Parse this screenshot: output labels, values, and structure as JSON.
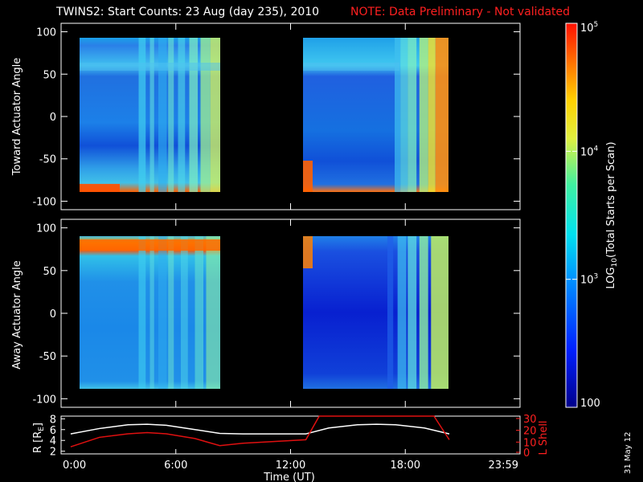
{
  "header": {
    "title": "TWINS2: Start Counts: 23 Aug (day 235), 2010",
    "note": "NOTE: Data Preliminary - Not validated"
  },
  "colors": {
    "background": "#000000",
    "axes": "#ffffff",
    "note": "#ff2020",
    "r_line": "#ffffff",
    "l_shell_line": "#e01010"
  },
  "stamp": "31 May 12",
  "chart_data": [
    {
      "type": "heatmap",
      "ylabel": "Toward Actuator Angle",
      "ylim": [
        -110,
        110
      ],
      "yticks": [
        "100",
        "50",
        "0",
        "-50",
        "-100"
      ],
      "xlim_hours": [
        0,
        24
      ],
      "data_intervals_hours": [
        [
          0.5,
          8.3
        ],
        [
          12.8,
          20.3
        ]
      ],
      "grid": false
    },
    {
      "type": "heatmap",
      "ylabel": "Away Actuator Angle",
      "ylim": [
        -110,
        110
      ],
      "yticks": [
        "100",
        "50",
        "0",
        "-50",
        "-100"
      ],
      "xlim_hours": [
        0,
        24
      ],
      "data_intervals_hours": [
        [
          0.5,
          8.3
        ],
        [
          12.8,
          20.3
        ]
      ],
      "grid": false
    },
    {
      "type": "line",
      "ylabel": "R [R",
      "ylabel_sub": "E",
      "ylabel_end": "]",
      "y2label": "L Shell",
      "yticks": [
        "8",
        "6",
        "4",
        "2"
      ],
      "y2ticks": [
        "30",
        "20",
        "10",
        "0"
      ],
      "ylim": [
        1.5,
        8.5
      ],
      "y2lim": [
        0,
        32
      ],
      "xlabel": "Time (UT)",
      "xticks": [
        "0:00",
        "6:00",
        "12:00",
        "18:00",
        "23:59"
      ],
      "xtick_hours": [
        0,
        6,
        12,
        18,
        24
      ],
      "series": [
        {
          "key": "R",
          "x": [
            0.5,
            2,
            3.5,
            4.5,
            5.5,
            7,
            8.3,
            9.5,
            12.8,
            14,
            15.5,
            16.5,
            17.5,
            19,
            20.3
          ],
          "values": [
            5.2,
            6.2,
            6.9,
            7.0,
            6.8,
            6.0,
            5.3,
            5.2,
            5.2,
            6.3,
            6.9,
            7.0,
            6.9,
            6.3,
            5.2
          ]
        },
        {
          "key": "L",
          "x": [
            0.5,
            2,
            3.5,
            4.5,
            5.5,
            7,
            8.3,
            9.5,
            12.8,
            13.5,
            19.5,
            20.3
          ],
          "values": [
            6,
            14,
            17,
            18,
            17,
            13,
            7,
            9,
            12,
            32,
            32,
            12
          ]
        }
      ]
    }
  ],
  "colorbar": {
    "label_prefix": "LOG",
    "label_sub": "10",
    "label_suffix": "(Total Starts per Scan)",
    "ticks": [
      {
        "base": "10",
        "exp": "5",
        "value": 5
      },
      {
        "base": "10",
        "exp": "4",
        "value": 4
      },
      {
        "base": "10",
        "exp": "3",
        "value": 3
      },
      {
        "base": "100",
        "exp": "",
        "value": 2
      }
    ],
    "range": [
      2,
      5
    ]
  }
}
